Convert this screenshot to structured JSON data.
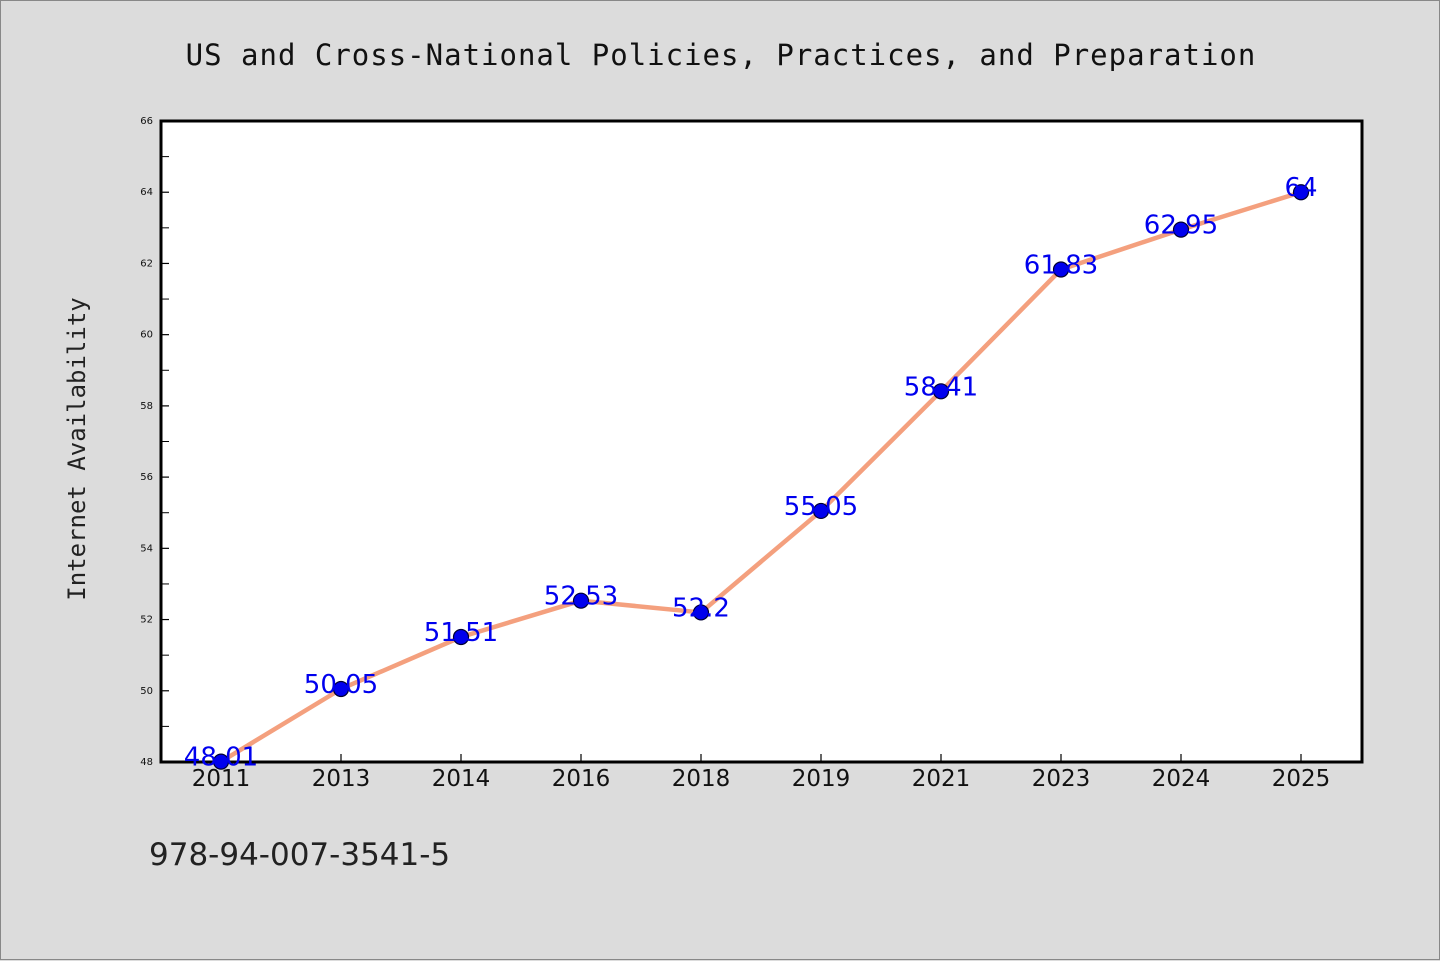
{
  "chart_data": {
    "type": "line",
    "title": "US and Cross-National Policies, Practices, and Preparation",
    "xlabel": "",
    "ylabel": "Internet Availability",
    "categories": [
      "2011",
      "2013",
      "2014",
      "2016",
      "2018",
      "2019",
      "2021",
      "2023",
      "2024",
      "2025"
    ],
    "series": [
      {
        "values": [
          48.01,
          50.05,
          51.51,
          52.53,
          52.2,
          55.05,
          58.41,
          61.83,
          62.95,
          64
        ],
        "labels": [
          "48.01",
          "50.05",
          "51.51",
          "52.53",
          "52.2",
          "55.05",
          "58.41",
          "61.83",
          "62.95",
          "64"
        ],
        "line_color": "#f4a07e",
        "marker_color": "#0000ee",
        "label_color": "#0000ee"
      }
    ],
    "ylim": [
      48,
      66
    ],
    "yticks": [
      "48",
      "50",
      "52",
      "54",
      "56",
      "58",
      "60",
      "62",
      "64",
      "66"
    ],
    "grid": false,
    "legend": "none"
  },
  "footer": {
    "isbn": "978-94-007-3541-5"
  },
  "colors": {
    "background": "#dcdcdc",
    "plot_background": "#ffffff"
  }
}
